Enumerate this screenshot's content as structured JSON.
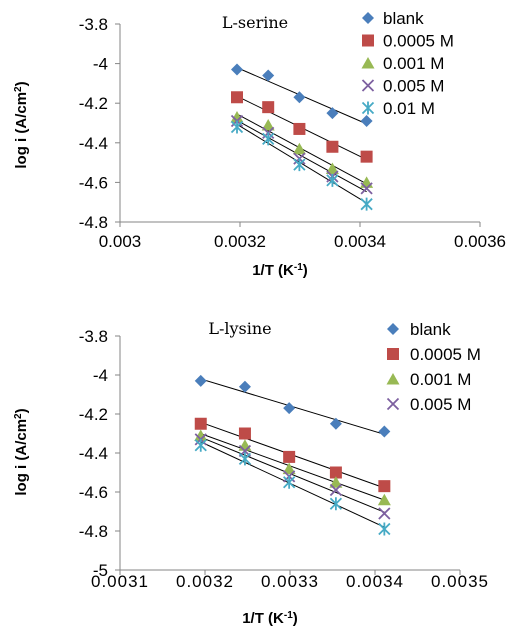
{
  "chart_data": [
    {
      "type": "scatter",
      "title": "L-serine",
      "xlabel": "1/T (K",
      "xlabel_sup": "-1",
      "xlabel_end": ")",
      "ylabel": "log i (A/cm",
      "ylabel_sup": "2",
      "ylabel_end": ")",
      "xlim": [
        0.003,
        0.0036
      ],
      "ylim": [
        -4.8,
        -3.8
      ],
      "xticks": [
        "0.003",
        "0.0032",
        "0.0034",
        "0.0036"
      ],
      "yticks": [
        "-3.8",
        "-4",
        "-4.2",
        "-4.4",
        "-4.6",
        "-4.8"
      ],
      "x": [
        0.003195,
        0.003247,
        0.003299,
        0.003354,
        0.003411
      ],
      "series": [
        {
          "name": "blank",
          "marker": "diamond",
          "color": "#4a7ebb",
          "values": [
            -4.03,
            -4.06,
            -4.17,
            -4.25,
            -4.29
          ]
        },
        {
          "name": "0.0005 M",
          "marker": "square",
          "color": "#be4b48",
          "values": [
            -4.17,
            -4.22,
            -4.33,
            -4.42,
            -4.47
          ]
        },
        {
          "name": "0.001 M",
          "marker": "triangle",
          "color": "#98b954",
          "values": [
            -4.27,
            -4.31,
            -4.43,
            -4.53,
            -4.6
          ]
        },
        {
          "name": "0.005 M",
          "marker": "x",
          "color": "#7d60a0",
          "values": [
            -4.29,
            -4.35,
            -4.48,
            -4.57,
            -4.63
          ]
        },
        {
          "name": "0.01 M",
          "marker": "star",
          "color": "#46aac5",
          "values": [
            -4.32,
            -4.38,
            -4.51,
            -4.59,
            -4.71
          ]
        }
      ],
      "legend": "top-right"
    },
    {
      "type": "scatter",
      "title": "L-lysine",
      "xlabel": "1/T (K",
      "xlabel_sup": "-1",
      "xlabel_end": ")",
      "ylabel": "log i (A/cm",
      "ylabel_sup": "2",
      "ylabel_end": ")",
      "xlim": [
        0.0031,
        0.0035
      ],
      "ylim": [
        -5,
        -3.8
      ],
      "xticks": [
        "0.0031",
        "0.0032",
        "0.0033",
        "0.0034",
        "0.0035"
      ],
      "yticks": [
        "-3.8",
        "-4",
        "-4.2",
        "-4.4",
        "-4.6",
        "-4.8",
        "-5"
      ],
      "x": [
        0.003195,
        0.003247,
        0.003299,
        0.003354,
        0.003411
      ],
      "series": [
        {
          "name": "blank",
          "marker": "diamond",
          "color": "#4a7ebb",
          "values": [
            -4.03,
            -4.06,
            -4.17,
            -4.25,
            -4.29
          ]
        },
        {
          "name": "0.0005 M",
          "marker": "square",
          "color": "#be4b48",
          "values": [
            -4.25,
            -4.3,
            -4.42,
            -4.5,
            -4.57
          ]
        },
        {
          "name": "0.001 M",
          "marker": "triangle",
          "color": "#98b954",
          "values": [
            -4.31,
            -4.36,
            -4.48,
            -4.55,
            -4.64
          ]
        },
        {
          "name": "0.005 M",
          "marker": "x",
          "color": "#7d60a0",
          "values": [
            -4.33,
            -4.39,
            -4.52,
            -4.59,
            -4.71
          ]
        },
        {
          "unlabeled": true,
          "marker": "star",
          "color": "#46aac5",
          "values": [
            -4.36,
            -4.43,
            -4.55,
            -4.66,
            -4.79
          ]
        }
      ],
      "legend": "top-right"
    }
  ]
}
